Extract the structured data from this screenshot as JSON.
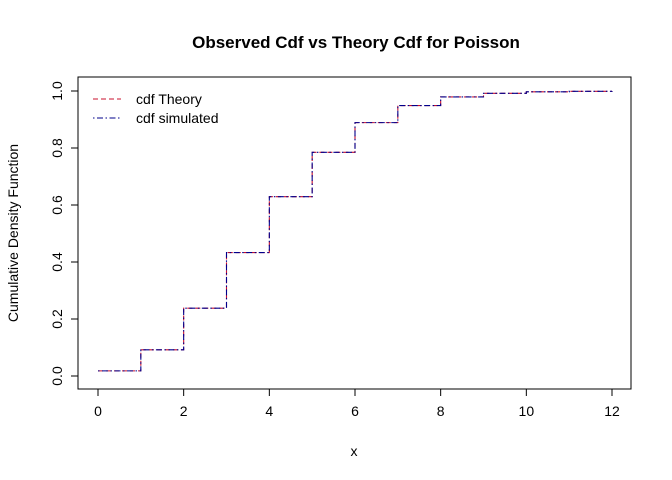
{
  "chart_data": {
    "type": "line",
    "title": "Observed Cdf vs Theory Cdf for Poisson",
    "xlabel": "x",
    "ylabel": "Cumulative Density Function",
    "xlim": [
      0,
      12
    ],
    "ylim": [
      0,
      1
    ],
    "xticks": [
      "0",
      "2",
      "4",
      "6",
      "8",
      "10",
      "12"
    ],
    "yticks": [
      "0.0",
      "0.2",
      "0.4",
      "0.6",
      "0.8",
      "1.0"
    ],
    "grid": false,
    "legend_position": "top-left",
    "x": [
      0,
      1,
      2,
      3,
      4,
      5,
      6,
      7,
      8,
      9,
      10,
      11,
      12
    ],
    "series": [
      {
        "name": "cdf Theory",
        "color": "#c8102e",
        "line_style": "dashed",
        "step": true,
        "values": [
          0.018,
          0.092,
          0.238,
          0.433,
          0.629,
          0.785,
          0.889,
          0.949,
          0.979,
          0.992,
          0.997,
          0.999,
          1.0
        ]
      },
      {
        "name": "cdf simulated",
        "color": "#00008b",
        "line_style": "dotdash",
        "step": true,
        "values": [
          0.018,
          0.092,
          0.238,
          0.433,
          0.629,
          0.785,
          0.889,
          0.949,
          0.979,
          0.992,
          0.997,
          0.999,
          1.0
        ]
      }
    ]
  }
}
